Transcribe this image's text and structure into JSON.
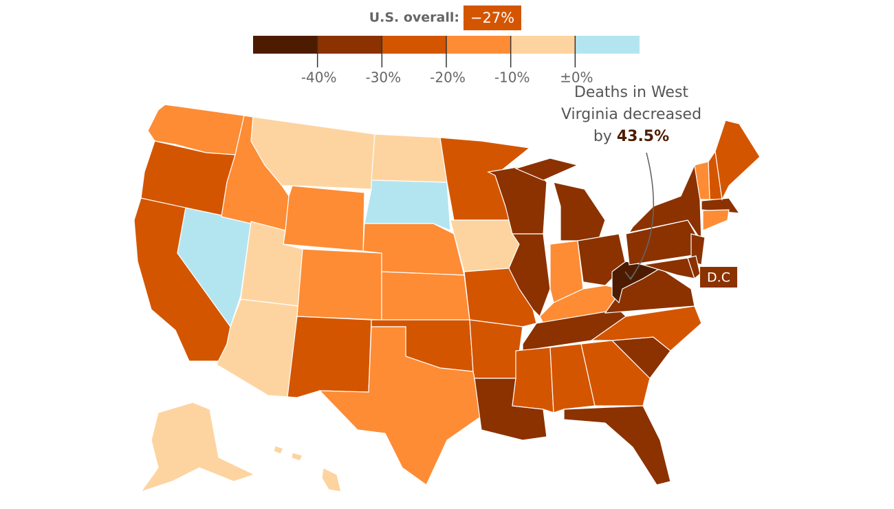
{
  "overall": {
    "label": "U.S. overall:",
    "value": -27,
    "value_label": "−27%",
    "color": "#d45500"
  },
  "chart_data": {
    "type": "choropleth",
    "xlim": [
      -50,
      10
    ],
    "xticks": [
      {
        "value": -40,
        "label": "-40%"
      },
      {
        "value": -30,
        "label": "-30%"
      },
      {
        "value": -20,
        "label": "-20%"
      },
      {
        "value": -10,
        "label": "-10%"
      },
      {
        "value": 0,
        "label": "±0%"
      }
    ],
    "colors": [
      "#4d1c00",
      "#8b3200",
      "#d45500",
      "#fd8c35",
      "#fdd4a0",
      "#b3e5f1"
    ],
    "state_colors": [
      "#fd8c35",
      "#d45500",
      "#d45500",
      "#b3e5f1",
      "#fd8c35",
      "#fdd4a0",
      "#fd8c35",
      "#fdd4a0",
      "#fdd4a0",
      "#fd8c35",
      "#d45500",
      "#fdd4a0",
      "#b3e5f1",
      "#fd8c35",
      "#fd8c35",
      "#d45500",
      "#fd8c35",
      "#d45500",
      "#fdd4a0",
      "#d45500",
      "#d45500",
      "#8b3200",
      "#8b3200",
      "#8b3200",
      "#8b3200",
      "#8b3200",
      "#fd8c35",
      "#8b3200",
      "#fd8c35",
      "#8b3200",
      "#d45500",
      "#d45500",
      "#d45500",
      "#8b3200",
      "#8b3200",
      "#d45500",
      "#8b3200",
      "#4d1c00",
      "#8b3200",
      "#8b3200",
      "#8b3200",
      "#8b3200",
      "#d45500",
      "#fd8c35",
      "#8b3200",
      "#d45500",
      "#8b3200",
      "#fd8c35",
      "#fdd4a0",
      "#fdd4a0",
      "#fdd4a0",
      "#fdd4a0"
    ]
  },
  "annotation": {
    "lines": [
      "Deaths in West",
      "Virginia decreased",
      "by"
    ],
    "highlight": "43.5%"
  },
  "dc_label": "D.C"
}
